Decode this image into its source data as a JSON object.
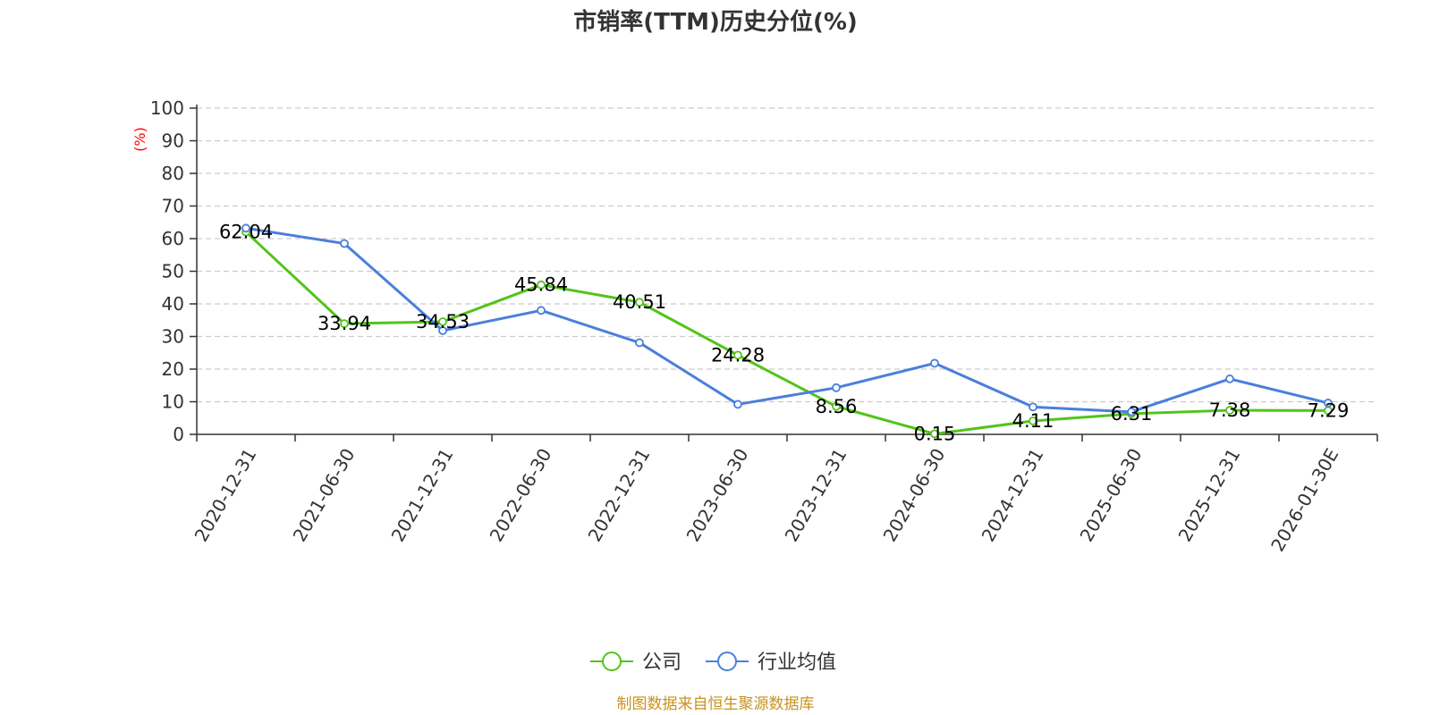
{
  "chart_data": {
    "type": "line",
    "title": "市销率(TTM)历史分位(%)",
    "ylabel": "(%)",
    "ylim": [
      0,
      100
    ],
    "yticks": [
      0,
      10,
      20,
      30,
      40,
      50,
      60,
      70,
      80,
      90,
      100
    ],
    "grid": true,
    "legend_position": "bottom",
    "categories": [
      "2020-12-31",
      "2021-06-30",
      "2021-12-31",
      "2022-06-30",
      "2022-12-31",
      "2023-06-30",
      "2023-12-31",
      "2024-06-30",
      "2024-12-31",
      "2025-06-30",
      "2025-12-31",
      "2026-01-30E"
    ],
    "series": [
      {
        "name": "公司",
        "color": "#52c41a",
        "values": [
          62.04,
          33.94,
          34.53,
          45.84,
          40.51,
          24.28,
          8.56,
          0.15,
          4.11,
          6.31,
          7.38,
          7.29
        ],
        "labels": [
          "62.04",
          "33.94",
          "34.53",
          "45.84",
          "40.51",
          "24.28",
          "8.56",
          "0.15",
          "4.11",
          "6.31",
          "7.38",
          "7.29"
        ]
      },
      {
        "name": "行业均值",
        "color": "#4a7fdc",
        "values": [
          63.2,
          58.5,
          31.8,
          38.0,
          28.1,
          9.2,
          14.3,
          21.8,
          8.4,
          6.9,
          17.0,
          9.6
        ]
      }
    ]
  },
  "source": "制图数据来自恒生聚源数据库",
  "source_color": "#c8921e"
}
